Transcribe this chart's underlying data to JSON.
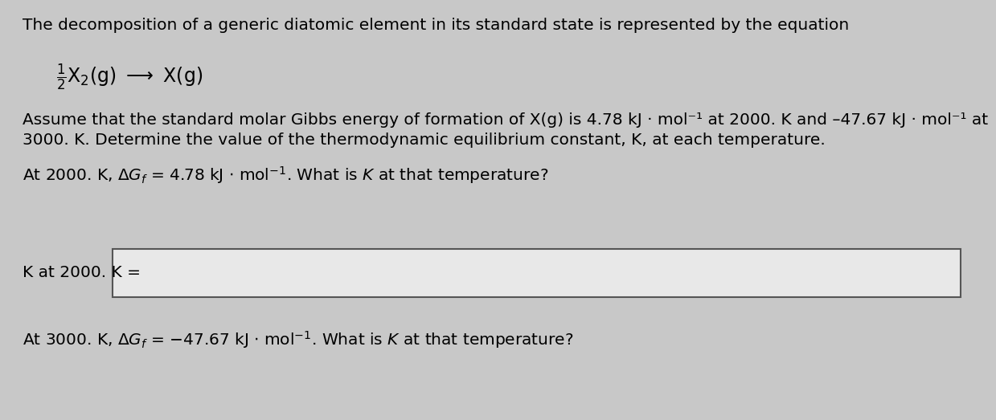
{
  "background_color": "#c8c8c8",
  "text_color": "#000000",
  "box_bg_color": "#e8e8e8",
  "box_border_color": "#555555",
  "line1": "The decomposition of a generic diatomic element in its standard state is represented by the equation",
  "para_line1": "Assume that the standard molar Gibbs energy of formation of X(g) is 4.78 kJ · mol⁻¹ at 2000. K and –47.67 kJ · mol⁻¹ at",
  "para_line2": "3000. K. Determine the value of the thermodynamic equilibrium constant, K, at each temperature.",
  "q1_text": "At 2000. K, ΔGᵢ = 4.78 kJ · mol⁻¹. What is K at that temperature?",
  "label_box": "K at 2000. K =",
  "q2_text": "At 3000. K, ΔGᵢ = –47.67 kJ · mol⁻¹. What is K at that temperature?",
  "font_size_main": 14.5,
  "font_size_equation": 17,
  "fig_width": 12.0,
  "fig_height": 5.03
}
